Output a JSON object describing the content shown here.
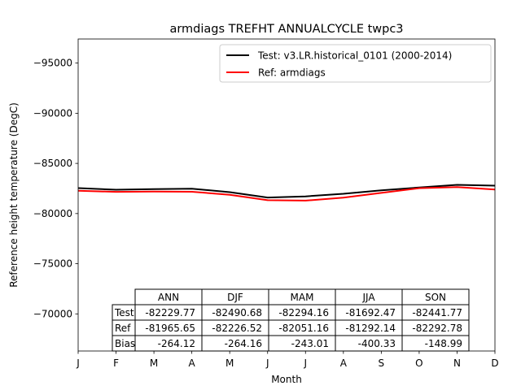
{
  "chart_data": {
    "type": "line",
    "title": "armdiags TREFHT ANNUALCYCLE twpc3",
    "xlabel": "Month",
    "ylabel": "Reference height temperature (DegC)",
    "ylim": [
      -66300,
      -97400
    ],
    "yticks": [
      -95000,
      -90000,
      -85000,
      -80000,
      -75000,
      -70000
    ],
    "ytick_labels": [
      "−95000",
      "−90000",
      "−85000",
      "−80000",
      "−75000",
      "−70000"
    ],
    "categories": [
      "J",
      "F",
      "M",
      "A",
      "M",
      "J",
      "J",
      "A",
      "S",
      "O",
      "N",
      "D"
    ],
    "series": [
      {
        "name": "Test: v3.LR.historical_0101 (2000-2014)",
        "color": "#000000",
        "values": [
          -82541,
          -82376,
          -82430,
          -82478,
          -82133,
          -81599,
          -81709,
          -81973,
          -82316,
          -82592,
          -82865,
          -82783
        ]
      },
      {
        "name": "Ref: armdiags",
        "color": "#ff0000",
        "values": [
          -82270,
          -82166,
          -82199,
          -82171,
          -81871,
          -81334,
          -81290,
          -81581,
          -82057,
          -82527,
          -82643,
          -82394
        ]
      }
    ],
    "legend_location": "upper-right",
    "table": {
      "col_labels": [
        "ANN",
        "DJF",
        "MAM",
        "JJA",
        "SON"
      ],
      "row_labels": [
        "Test",
        "Ref",
        "Bias"
      ],
      "cells": [
        [
          "-82229.77",
          "-82490.68",
          "-82294.16",
          "-81692.47",
          "-82441.77"
        ],
        [
          "-81965.65",
          "-82226.52",
          "-82051.16",
          "-81292.14",
          "-82292.78"
        ],
        [
          "-264.12",
          "-264.16",
          "-243.01",
          "-400.33",
          "-148.99"
        ]
      ]
    }
  }
}
